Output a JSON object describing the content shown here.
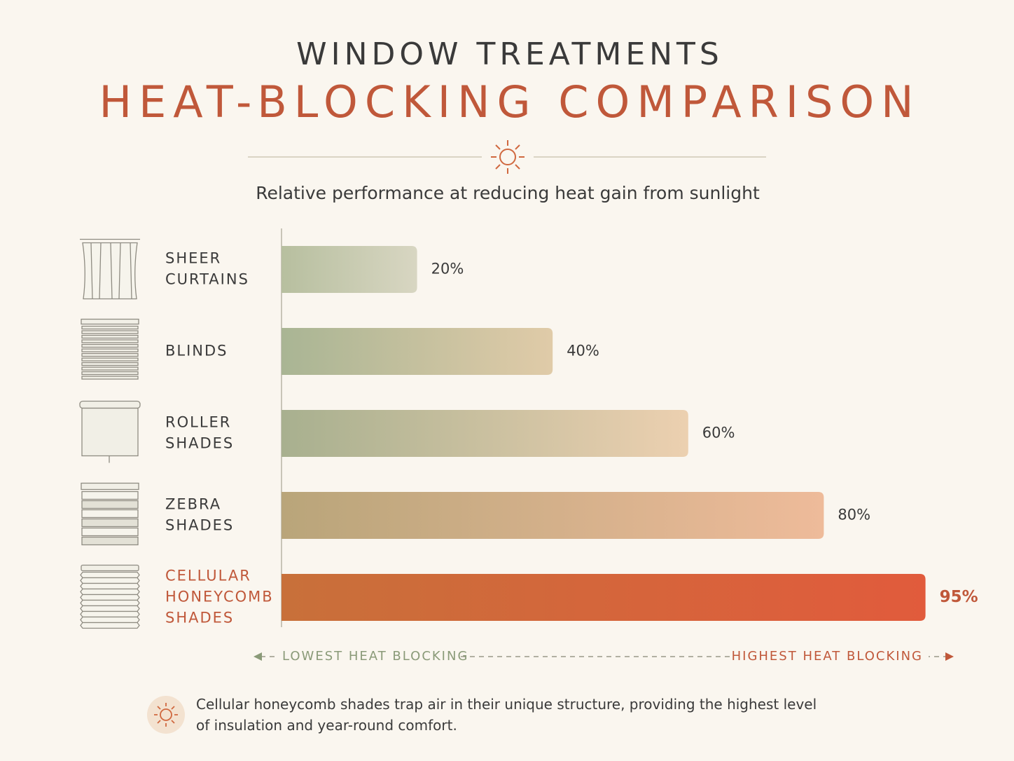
{
  "chart_data": {
    "type": "hbar",
    "title": "WINDOW TREATMENTS",
    "subtitle": "HEAT-BLOCKING COMPARISON",
    "description": "Relative performance at reducing heat gain from sunlight",
    "categories": [
      "SHEER CURTAINS",
      "BLINDS",
      "ROLLER SHADES",
      "ZEBRA SHADES",
      "CELLULAR HONEYCOMB SHADES"
    ],
    "values": [
      20,
      40,
      60,
      80,
      95
    ],
    "value_labels": [
      "20%",
      "40%",
      "60%",
      "80%",
      "95%"
    ],
    "colors": [
      [
        "#b7bf9f",
        "#d8d6c2"
      ],
      [
        "#a9b594",
        "#e0cba8"
      ],
      [
        "#a8b08f",
        "#ecd0b0"
      ],
      [
        "#b9a57a",
        "#eebb9a"
      ],
      [
        "#c8703a",
        "#e15b3c"
      ]
    ],
    "highlight": 4,
    "highlight_color": "#c0583a",
    "xlim": [
      0,
      100
    ],
    "low_label": "LOWEST HEAT BLOCKING",
    "high_label": "HIGHEST HEAT BLOCKING",
    "note": "Cellular honeycomb shades trap air in their unique structure, providing the highest level of insulation and year-round comfort."
  }
}
